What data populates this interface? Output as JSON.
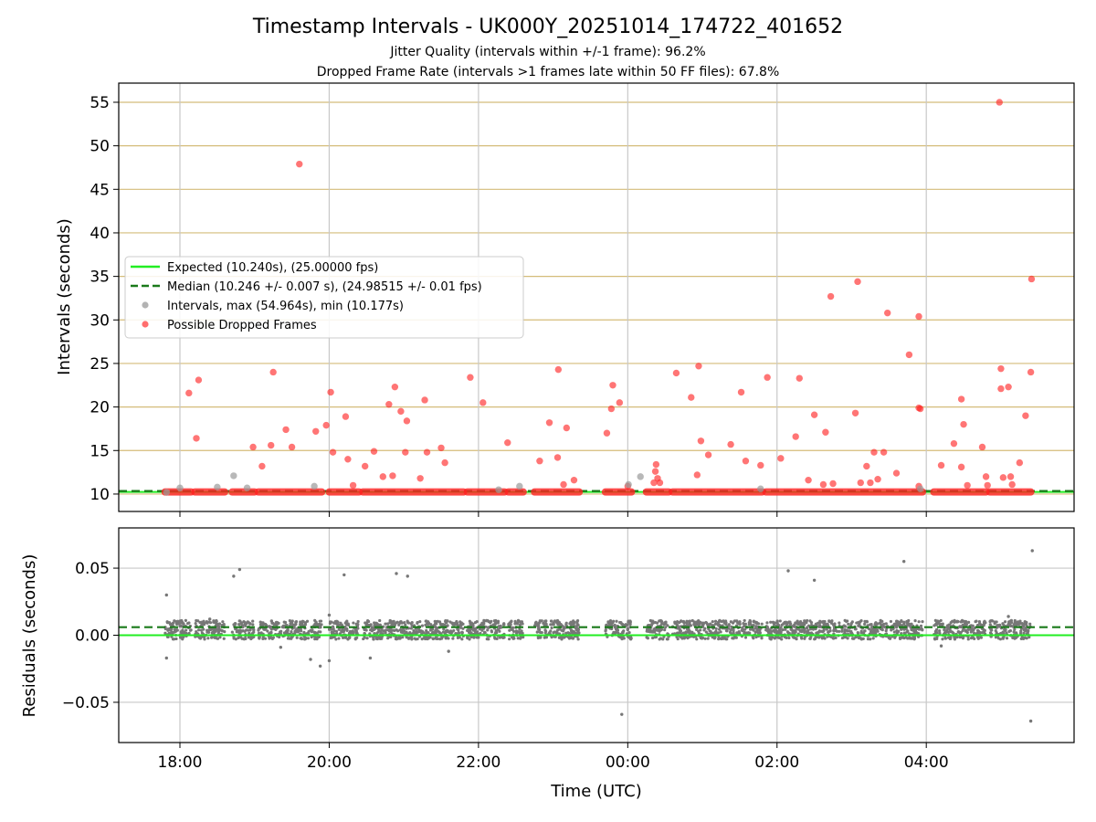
{
  "title": "Timestamp Intervals - UK000Y_20251014_174722_401652",
  "subtitle_1": "Jitter Quality (intervals within +/-1 frame): 96.2%",
  "subtitle_2": "Dropped Frame Rate (intervals >1 frames late within 50 FF files): 67.8%",
  "colors": {
    "expected": "#22ee22",
    "median": "#1a7a1a",
    "intervals": "#9a9a9a",
    "dropped": "#ff2020",
    "residuals": "#777777",
    "hgrid_top": "#d4bc7a",
    "grid": "#c8c8c8"
  },
  "chart_data": [
    {
      "type": "scatter",
      "panel": "intervals",
      "ylabel": "Intervals (seconds)",
      "xlabel": "",
      "xlim_hours": [
        17.18,
        29.98
      ],
      "ylim": [
        8.0,
        57.2
      ],
      "yticks": [
        10,
        15,
        20,
        25,
        30,
        35,
        40,
        45,
        50,
        55
      ],
      "ytick_labels": [
        "10",
        "15",
        "20",
        "25",
        "30",
        "35",
        "40",
        "45",
        "50",
        "55"
      ],
      "grid": true,
      "legend_position": "center-left",
      "legend": [
        {
          "key": "expected",
          "label": "Expected (10.240s), (25.00000 fps)"
        },
        {
          "key": "median",
          "label": "Median (10.246 +/- 0.007 s), (24.98515 +/- 0.01 fps)"
        },
        {
          "key": "intervals",
          "label": "Intervals, max (54.964s), min (10.177s)"
        },
        {
          "key": "dropped",
          "label": "Possible Dropped Frames"
        }
      ],
      "expected_value": 10.24,
      "median_value": 10.246,
      "baseline_runs": [
        [
          17.8,
          18.15
        ],
        [
          18.2,
          18.6
        ],
        [
          18.7,
          19.0
        ],
        [
          19.05,
          19.9
        ],
        [
          20.0,
          20.4
        ],
        [
          20.45,
          21.8
        ],
        [
          21.85,
          22.35
        ],
        [
          22.4,
          22.6
        ],
        [
          22.75,
          23.35
        ],
        [
          23.7,
          24.05
        ],
        [
          24.25,
          24.55
        ],
        [
          24.6,
          25.8
        ],
        [
          25.85,
          27.95
        ],
        [
          28.1,
          28.8
        ],
        [
          28.85,
          29.4
        ]
      ],
      "series": [
        {
          "name": "Possible Dropped Frames",
          "key": "dropped",
          "points": [
            [
              18.12,
              21.6
            ],
            [
              18.25,
              23.1
            ],
            [
              18.22,
              16.4
            ],
            [
              18.98,
              15.4
            ],
            [
              19.1,
              13.2
            ],
            [
              19.22,
              15.6
            ],
            [
              19.25,
              24.0
            ],
            [
              19.42,
              17.4
            ],
            [
              19.5,
              15.4
            ],
            [
              19.6,
              47.9
            ],
            [
              19.82,
              17.2
            ],
            [
              19.96,
              17.9
            ],
            [
              20.02,
              21.7
            ],
            [
              20.05,
              14.8
            ],
            [
              20.22,
              18.9
            ],
            [
              20.25,
              14.0
            ],
            [
              20.32,
              11.0
            ],
            [
              20.48,
              13.2
            ],
            [
              20.6,
              14.9
            ],
            [
              20.72,
              12.0
            ],
            [
              20.8,
              20.3
            ],
            [
              20.85,
              12.1
            ],
            [
              20.88,
              22.3
            ],
            [
              20.96,
              19.5
            ],
            [
              21.02,
              14.8
            ],
            [
              21.04,
              18.4
            ],
            [
              21.22,
              11.8
            ],
            [
              21.28,
              20.8
            ],
            [
              21.31,
              14.8
            ],
            [
              21.5,
              15.3
            ],
            [
              21.55,
              13.6
            ],
            [
              21.89,
              23.4
            ],
            [
              22.06,
              20.5
            ],
            [
              22.39,
              15.9
            ],
            [
              22.82,
              13.8
            ],
            [
              22.95,
              18.2
            ],
            [
              23.07,
              24.3
            ],
            [
              23.06,
              14.2
            ],
            [
              23.14,
              11.1
            ],
            [
              23.18,
              17.6
            ],
            [
              23.28,
              11.6
            ],
            [
              23.72,
              17.0
            ],
            [
              23.78,
              19.8
            ],
            [
              23.8,
              22.5
            ],
            [
              23.89,
              20.5
            ],
            [
              24.0,
              10.9
            ],
            [
              24.35,
              11.3
            ],
            [
              24.37,
              12.6
            ],
            [
              24.38,
              13.4
            ],
            [
              24.4,
              11.8
            ],
            [
              24.43,
              11.3
            ],
            [
              24.65,
              23.9
            ],
            [
              24.85,
              21.1
            ],
            [
              24.93,
              12.2
            ],
            [
              24.95,
              24.7
            ],
            [
              24.98,
              16.1
            ],
            [
              25.08,
              14.5
            ],
            [
              25.38,
              15.7
            ],
            [
              25.52,
              21.7
            ],
            [
              25.58,
              13.8
            ],
            [
              25.78,
              13.3
            ],
            [
              25.87,
              23.4
            ],
            [
              26.05,
              14.1
            ],
            [
              26.25,
              16.6
            ],
            [
              26.3,
              23.3
            ],
            [
              26.5,
              19.1
            ],
            [
              26.42,
              11.6
            ],
            [
              26.62,
              11.1
            ],
            [
              26.65,
              17.1
            ],
            [
              26.72,
              32.7
            ],
            [
              26.75,
              11.2
            ],
            [
              27.05,
              19.3
            ],
            [
              27.08,
              34.4
            ],
            [
              27.12,
              11.3
            ],
            [
              27.2,
              13.2
            ],
            [
              27.25,
              11.3
            ],
            [
              27.3,
              14.8
            ],
            [
              27.35,
              11.7
            ],
            [
              27.43,
              14.8
            ],
            [
              27.48,
              30.8
            ],
            [
              27.6,
              12.4
            ],
            [
              27.77,
              26.0
            ],
            [
              27.9,
              30.4
            ],
            [
              27.9,
              19.9
            ],
            [
              27.92,
              19.8
            ],
            [
              27.9,
              10.9
            ],
            [
              28.2,
              13.3
            ],
            [
              28.37,
              15.8
            ],
            [
              28.47,
              20.9
            ],
            [
              28.47,
              13.1
            ],
            [
              28.5,
              18.0
            ],
            [
              28.55,
              11.0
            ],
            [
              28.75,
              15.4
            ],
            [
              28.8,
              12.0
            ],
            [
              28.82,
              11.0
            ],
            [
              28.98,
              55.0
            ],
            [
              29.0,
              22.1
            ],
            [
              29.0,
              24.4
            ],
            [
              29.03,
              11.9
            ],
            [
              29.1,
              22.3
            ],
            [
              29.13,
              12.0
            ],
            [
              29.15,
              11.1
            ],
            [
              29.25,
              13.6
            ],
            [
              29.33,
              19.0
            ],
            [
              29.4,
              24.0
            ],
            [
              29.41,
              34.7
            ]
          ]
        },
        {
          "name": "Intervals",
          "key": "intervals",
          "points": [
            [
              17.82,
              10.2
            ],
            [
              18.0,
              10.7
            ],
            [
              18.5,
              10.8
            ],
            [
              18.72,
              12.1
            ],
            [
              18.9,
              10.7
            ],
            [
              19.8,
              10.9
            ],
            [
              22.27,
              10.5
            ],
            [
              22.55,
              10.9
            ],
            [
              24.01,
              11.1
            ],
            [
              24.17,
              12.0
            ],
            [
              25.78,
              10.6
            ],
            [
              27.92,
              10.6
            ]
          ]
        }
      ]
    },
    {
      "type": "scatter",
      "panel": "residuals",
      "ylabel": "Residuals (seconds)",
      "xlabel": "Time (UTC)",
      "xlim_hours": [
        17.18,
        29.98
      ],
      "ylim": [
        -0.08,
        0.08
      ],
      "yticks": [
        0.05,
        0.0,
        -0.05
      ],
      "ytick_labels": [
        "0.05",
        "0.00",
        "−0.05"
      ],
      "xticks_hours": [
        18,
        20,
        22,
        24,
        26,
        28
      ],
      "xtick_labels": [
        "18:00",
        "20:00",
        "22:00",
        "00:00",
        "02:00",
        "04:00"
      ],
      "grid": true,
      "expected_value": 0.0,
      "median_value": 0.006,
      "dense_band": [
        -0.003,
        0.011
      ],
      "outliers": [
        [
          17.82,
          0.03
        ],
        [
          17.82,
          -0.017
        ],
        [
          18.72,
          0.044
        ],
        [
          18.8,
          0.049
        ],
        [
          19.35,
          -0.009
        ],
        [
          19.75,
          -0.018
        ],
        [
          19.88,
          -0.023
        ],
        [
          20.0,
          -0.019
        ],
        [
          20.2,
          0.045
        ],
        [
          20.55,
          -0.017
        ],
        [
          20.9,
          0.046
        ],
        [
          21.05,
          0.044
        ],
        [
          23.92,
          -0.059
        ],
        [
          26.15,
          0.048
        ],
        [
          26.5,
          0.041
        ],
        [
          27.7,
          0.055
        ],
        [
          29.42,
          0.063
        ],
        [
          29.4,
          -0.064
        ],
        [
          21.6,
          -0.012
        ],
        [
          28.2,
          -0.008
        ],
        [
          29.1,
          0.014
        ],
        [
          18.4,
          0.012
        ],
        [
          20.0,
          0.015
        ]
      ]
    }
  ]
}
